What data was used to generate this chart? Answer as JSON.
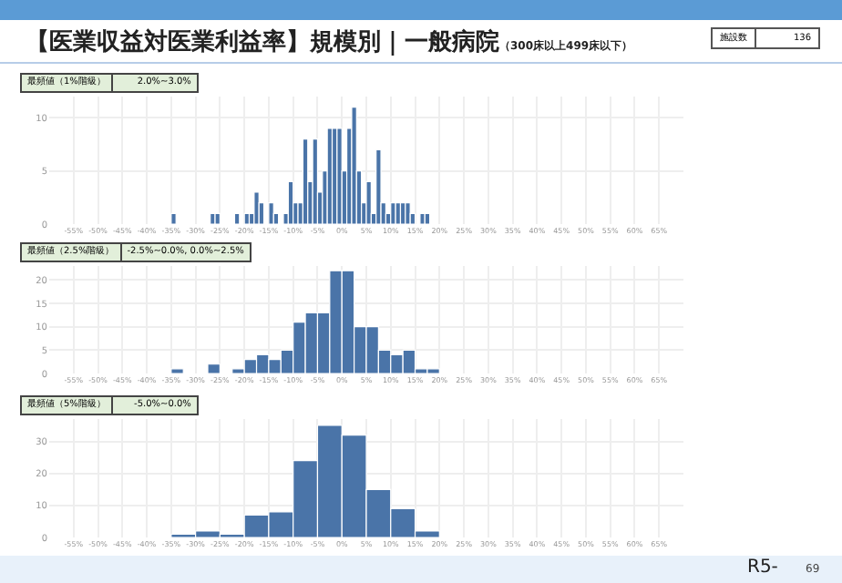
{
  "chart_data": [
    {
      "type": "histogram",
      "title": "【医業収益対医業利益率】規模別｜一般病院",
      "subtitle": "（300床以上499床以下）",
      "annotations": [
        "最頻値（1%階級）",
        "2.0%~3.0%",
        "施設数",
        "136"
      ],
      "color": "#4a74a8",
      "bins": [
        -35,
        -34,
        -33,
        -32,
        -31,
        -30,
        -29,
        -28,
        -27,
        -26,
        -25,
        -24,
        -23,
        -22,
        -21,
        -20,
        -19,
        -18,
        -17,
        -16,
        -15,
        -14,
        -13,
        -12,
        -11,
        -10,
        -9,
        -8,
        -7,
        -6,
        -5,
        -4,
        -3,
        -2,
        -1,
        0,
        1,
        2,
        3,
        4,
        5,
        6,
        7,
        8,
        9,
        10,
        11,
        12,
        13,
        14,
        15,
        16,
        17,
        18
      ],
      "values": [
        1,
        0,
        0,
        0,
        0,
        0,
        0,
        0,
        1,
        1,
        0,
        0,
        0,
        1,
        0,
        1,
        1,
        3,
        2,
        0,
        2,
        1,
        0,
        1,
        4,
        2,
        2,
        8,
        4,
        8,
        3,
        5,
        9,
        9,
        9,
        5,
        9,
        11,
        5,
        2,
        4,
        1,
        7,
        2,
        1,
        2,
        2,
        2,
        2,
        1,
        0,
        1,
        1
      ],
      "xlim": [
        -60,
        70
      ],
      "ylim": [
        0,
        12
      ],
      "yticks": [
        0,
        5,
        10
      ],
      "grid": true,
      "xticks": [
        {
          "value": -55,
          "label": "-55%"
        },
        {
          "value": -50,
          "label": "-50%"
        },
        {
          "value": -45,
          "label": "-45%"
        },
        {
          "value": -40,
          "label": "-40%"
        },
        {
          "value": -35,
          "label": "-35%"
        },
        {
          "value": -30,
          "label": "-30%"
        },
        {
          "value": -25,
          "label": "-25%"
        },
        {
          "value": -20,
          "label": "-20%"
        },
        {
          "value": -15,
          "label": "-15%"
        },
        {
          "value": -10,
          "label": "-10%"
        },
        {
          "value": -5,
          "label": "-5%"
        },
        {
          "value": 0,
          "label": "0%"
        },
        {
          "value": 5,
          "label": "5%"
        },
        {
          "value": 10,
          "label": "10%"
        },
        {
          "value": 15,
          "label": "15%"
        },
        {
          "value": 20,
          "label": "20%"
        },
        {
          "value": 25,
          "label": "25%"
        },
        {
          "value": 30,
          "label": "30%"
        },
        {
          "value": 35,
          "label": "35%"
        },
        {
          "value": 40,
          "label": "40%"
        },
        {
          "value": 45,
          "label": "45%"
        },
        {
          "value": 50,
          "label": "50%"
        },
        {
          "value": 55,
          "label": "55%"
        },
        {
          "value": 60,
          "label": "60%"
        },
        {
          "value": 65,
          "label": "65%"
        }
      ]
    },
    {
      "type": "histogram",
      "annotations": [
        "最頻値（2.5%階級）",
        "-2.5%~0.0%, 0.0%~2.5%"
      ],
      "color": "#4a74a8",
      "bins": [
        -35,
        -32.5,
        -30,
        -27.5,
        -25,
        -22.5,
        -20,
        -17.5,
        -15,
        -12.5,
        -10,
        -7.5,
        -5,
        -2.5,
        0,
        2.5,
        5,
        7.5,
        10,
        12.5,
        15,
        17.5,
        20
      ],
      "values": [
        1,
        0,
        0,
        2,
        0,
        1,
        3,
        4,
        3,
        5,
        11,
        13,
        13,
        22,
        22,
        10,
        10,
        5,
        4,
        5,
        1,
        1
      ],
      "xlim": [
        -60,
        70
      ],
      "ylim": [
        0,
        23
      ],
      "yticks": [
        0,
        5,
        10,
        15,
        20
      ],
      "grid": true,
      "xticks": [
        {
          "value": -55,
          "label": "-55%"
        },
        {
          "value": -50,
          "label": "-50%"
        },
        {
          "value": -45,
          "label": "-45%"
        },
        {
          "value": -40,
          "label": "-40%"
        },
        {
          "value": -35,
          "label": "-35%"
        },
        {
          "value": -30,
          "label": "-30%"
        },
        {
          "value": -25,
          "label": "-25%"
        },
        {
          "value": -20,
          "label": "-20%"
        },
        {
          "value": -15,
          "label": "-15%"
        },
        {
          "value": -10,
          "label": "-10%"
        },
        {
          "value": -5,
          "label": "-5%"
        },
        {
          "value": 0,
          "label": "0%"
        },
        {
          "value": 5,
          "label": "5%"
        },
        {
          "value": 10,
          "label": "10%"
        },
        {
          "value": 15,
          "label": "15%"
        },
        {
          "value": 20,
          "label": "20%"
        },
        {
          "value": 25,
          "label": "25%"
        },
        {
          "value": 30,
          "label": "30%"
        },
        {
          "value": 35,
          "label": "35%"
        },
        {
          "value": 40,
          "label": "40%"
        },
        {
          "value": 45,
          "label": "45%"
        },
        {
          "value": 50,
          "label": "50%"
        },
        {
          "value": 55,
          "label": "55%"
        },
        {
          "value": 60,
          "label": "60%"
        },
        {
          "value": 65,
          "label": "65%"
        }
      ]
    },
    {
      "type": "histogram",
      "annotations": [
        "最頻値（5%階級）",
        "-5.0%~0.0%",
        "R5-",
        "69"
      ],
      "color": "#4a74a8",
      "bins": [
        -35,
        -30,
        -25,
        -20,
        -15,
        -10,
        -5,
        0,
        5,
        10,
        15,
        20
      ],
      "values": [
        1,
        2,
        1,
        7,
        8,
        24,
        35,
        32,
        15,
        9,
        2
      ],
      "xlim": [
        -60,
        70
      ],
      "ylim": [
        0,
        37
      ],
      "yticks": [
        0,
        10,
        20,
        30
      ],
      "grid": true,
      "xticks": [
        {
          "value": -55,
          "label": "-55%"
        },
        {
          "value": -50,
          "label": "-50%"
        },
        {
          "value": -45,
          "label": "-45%"
        },
        {
          "value": -40,
          "label": "-40%"
        },
        {
          "value": -35,
          "label": "-35%"
        },
        {
          "value": -30,
          "label": "-30%"
        },
        {
          "value": -25,
          "label": "-25%"
        },
        {
          "value": -20,
          "label": "-20%"
        },
        {
          "value": -15,
          "label": "-15%"
        },
        {
          "value": -10,
          "label": "-10%"
        },
        {
          "value": -5,
          "label": "-5%"
        },
        {
          "value": 0,
          "label": "0%"
        },
        {
          "value": 5,
          "label": "5%"
        },
        {
          "value": 10,
          "label": "10%"
        },
        {
          "value": 15,
          "label": "15%"
        },
        {
          "value": 20,
          "label": "20%"
        },
        {
          "value": 25,
          "label": "25%"
        },
        {
          "value": 30,
          "label": "30%"
        },
        {
          "value": 35,
          "label": "35%"
        },
        {
          "value": 40,
          "label": "40%"
        },
        {
          "value": 45,
          "label": "45%"
        },
        {
          "value": 50,
          "label": "50%"
        },
        {
          "value": 55,
          "label": "55%"
        },
        {
          "value": 60,
          "label": "60%"
        },
        {
          "value": 65,
          "label": "65%"
        }
      ]
    }
  ]
}
